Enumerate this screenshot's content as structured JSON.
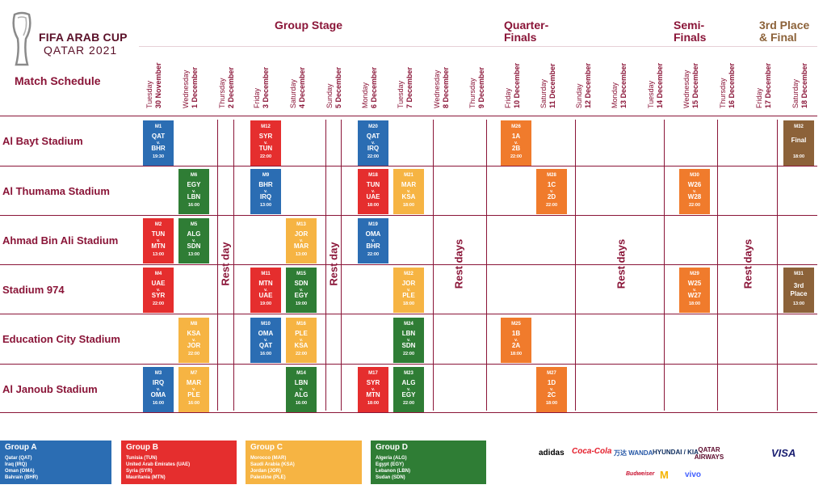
{
  "logo": {
    "line1": "FIFA ARAB CUP",
    "line2": "QATAR 2021"
  },
  "title": "Match Schedule",
  "stages": {
    "group": "Group Stage",
    "quarter_1": "Quarter-",
    "quarter_2": "Finals",
    "semi_1": "Semi-",
    "semi_2": "Finals",
    "third_1": "3rd Place",
    "third_2": "& Final"
  },
  "days": [
    {
      "w": "Tuesday",
      "d": "30 November"
    },
    {
      "w": "Wednesday",
      "d": "1 December"
    },
    {
      "w": "Thursday",
      "d": "2 December"
    },
    {
      "w": "Friday",
      "d": "3 December"
    },
    {
      "w": "Saturday",
      "d": "4 December"
    },
    {
      "w": "Sunday",
      "d": "5 December"
    },
    {
      "w": "Monday",
      "d": "6 December"
    },
    {
      "w": "Tuesday",
      "d": "7 December"
    },
    {
      "w": "Wednesday",
      "d": "8 December"
    },
    {
      "w": "Thursday",
      "d": "9 December"
    },
    {
      "w": "Friday",
      "d": "10 December"
    },
    {
      "w": "Saturday",
      "d": "11 December"
    },
    {
      "w": "Sunday",
      "d": "12 December"
    },
    {
      "w": "Monday",
      "d": "13 December"
    },
    {
      "w": "Tuesday",
      "d": "14 December"
    },
    {
      "w": "Wednesday",
      "d": "15 December"
    },
    {
      "w": "Thursday",
      "d": "16 December"
    },
    {
      "w": "Friday",
      "d": "17 December"
    },
    {
      "w": "Saturday",
      "d": "18 December"
    }
  ],
  "stadiums": [
    "Al Bayt Stadium",
    "Al Thumama Stadium",
    "Ahmad Bin Ali Stadium",
    "Stadium 974",
    "Education City Stadium",
    "Al Janoub Stadium"
  ],
  "rest": {
    "day1": "Rest day",
    "day2": "Rest day",
    "days1": "Rest days",
    "days2": "Rest days",
    "days3": "Rest days"
  },
  "colors": {
    "groupA": "#2b6db3",
    "groupB": "#e52e2e",
    "groupC": "#f6b443",
    "groupD": "#2f7d35",
    "knockout": "#f07b2c",
    "final": "#8c6239",
    "brand": "#8a1538"
  },
  "matches": [
    {
      "id": "M1",
      "a": "QAT",
      "v": "v.",
      "b": "BHR",
      "t": "19:30"
    },
    {
      "id": "M12",
      "a": "SYR",
      "v": "v.",
      "b": "TUN",
      "t": "22:00"
    },
    {
      "id": "M20",
      "a": "QAT",
      "v": "v.",
      "b": "IRQ",
      "t": "22:00"
    },
    {
      "id": "M26",
      "a": "1A",
      "v": "v.",
      "b": "2B",
      "t": "22:00"
    },
    {
      "id": "M32",
      "a": "Final",
      "v": "",
      "b": "",
      "t": "18:00"
    },
    {
      "id": "M6",
      "a": "EGY",
      "v": "v.",
      "b": "LBN",
      "t": "16:00"
    },
    {
      "id": "M9",
      "a": "BHR",
      "v": "v.",
      "b": "IRQ",
      "t": "13:00"
    },
    {
      "id": "M18",
      "a": "TUN",
      "v": "v.",
      "b": "UAE",
      "t": "18:00"
    },
    {
      "id": "M21",
      "a": "MAR",
      "v": "v.",
      "b": "KSA",
      "t": "18:00"
    },
    {
      "id": "M28",
      "a": "1C",
      "v": "v.",
      "b": "2D",
      "t": "22:00"
    },
    {
      "id": "M30",
      "a": "W26",
      "v": "v.",
      "b": "W28",
      "t": "22:00"
    },
    {
      "id": "M2",
      "a": "TUN",
      "v": "v.",
      "b": "MTN",
      "t": "13:00"
    },
    {
      "id": "M5",
      "a": "ALG",
      "v": "v.",
      "b": "SDN",
      "t": "13:00"
    },
    {
      "id": "M13",
      "a": "JOR",
      "v": "v.",
      "b": "MAR",
      "t": "13:00"
    },
    {
      "id": "M19",
      "a": "OMA",
      "v": "v.",
      "b": "BHR",
      "t": "22:00"
    },
    {
      "id": "M4",
      "a": "UAE",
      "v": "v.",
      "b": "SYR",
      "t": "22:00"
    },
    {
      "id": "M11",
      "a": "MTN",
      "v": "v.",
      "b": "UAE",
      "t": "19:00"
    },
    {
      "id": "M15",
      "a": "SDN",
      "v": "v.",
      "b": "EGY",
      "t": "19:00"
    },
    {
      "id": "M22",
      "a": "JOR",
      "v": "v.",
      "b": "PLE",
      "t": "18:00"
    },
    {
      "id": "M29",
      "a": "W25",
      "v": "v.",
      "b": "W27",
      "t": "18:00"
    },
    {
      "id": "M31",
      "a": "3rd",
      "v": "",
      "b": "Place",
      "t": "13:00"
    },
    {
      "id": "M8",
      "a": "KSA",
      "v": "v.",
      "b": "JOR",
      "t": "22:00"
    },
    {
      "id": "M10",
      "a": "OMA",
      "v": "v.",
      "b": "QAT",
      "t": "16:00"
    },
    {
      "id": "M16",
      "a": "PLE",
      "v": "v.",
      "b": "KSA",
      "t": "22:00"
    },
    {
      "id": "M24",
      "a": "LBN",
      "v": "v.",
      "b": "SDN",
      "t": "22:00"
    },
    {
      "id": "M25",
      "a": "1B",
      "v": "v.",
      "b": "2A",
      "t": "18:00"
    },
    {
      "id": "M3",
      "a": "IRQ",
      "v": "v.",
      "b": "OMA",
      "t": "16:00"
    },
    {
      "id": "M7",
      "a": "MAR",
      "v": "v.",
      "b": "PLE",
      "t": "16:00"
    },
    {
      "id": "M14",
      "a": "LBN",
      "v": "v.",
      "b": "ALG",
      "t": "16:00"
    },
    {
      "id": "M17",
      "a": "SYR",
      "v": "v.",
      "b": "MTN",
      "t": "18:00"
    },
    {
      "id": "M23",
      "a": "ALG",
      "v": "v.",
      "b": "EGY",
      "t": "22:00"
    },
    {
      "id": "M27",
      "a": "1D",
      "v": "v.",
      "b": "2C",
      "t": "18:00"
    }
  ],
  "groups": [
    {
      "name": "Group A",
      "teams": [
        "Qatar (QAT)",
        "Iraq (IRQ)",
        "Oman (OMA)",
        "Bahrain (BHR)"
      ]
    },
    {
      "name": "Group B",
      "teams": [
        "Tunisia (TUN)",
        "United Arab Emirates (UAE)",
        "Syria (SYR)",
        "Mauritania (MTN)"
      ]
    },
    {
      "name": "Group C",
      "teams": [
        "Morocco (MAR)",
        "Saudi Arabia (KSA)",
        "Jordan (JOR)",
        "Palestine (PLE)"
      ]
    },
    {
      "name": "Group D",
      "teams": [
        "Algeria (ALG)",
        "Egypt (EGY)",
        "Lebanon (LBN)",
        "Sudan (SDN)"
      ]
    }
  ],
  "sponsors": {
    "adidas": "adidas",
    "cocacola": "Coca-Cola",
    "wanda": "万达 WANDA",
    "hyundai": "HYUNDAI / KIA",
    "qatar": "QATAR AIRWAYS",
    "visa": "VISA",
    "budweiser": "Budweiser",
    "vivo": "vivo"
  }
}
